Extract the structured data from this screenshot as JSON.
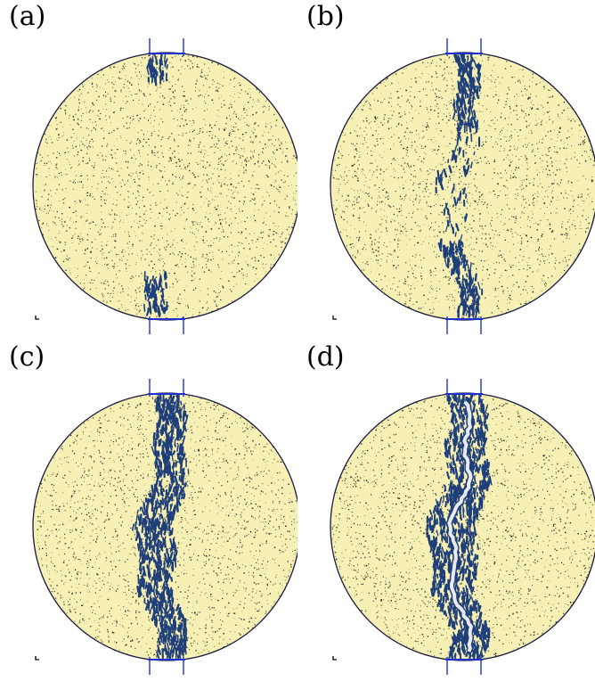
{
  "figure": {
    "panels": [
      {
        "id": "a",
        "label": "(a)",
        "crack_stage": 0.25
      },
      {
        "id": "b",
        "label": "(b)",
        "crack_stage": 0.5
      },
      {
        "id": "c",
        "label": "(c)",
        "crack_stage": 0.75
      },
      {
        "id": "d",
        "label": "(d)",
        "crack_stage": 1.0
      }
    ],
    "colors": {
      "specimen_fill": "#f7f0b4",
      "specimen_outline": "#1a1a40",
      "particle_dots": "#1b1b1b",
      "damage_marks": "#1f3f7a",
      "loading_plates": "#1f2fd0",
      "open_crack": "#e9e9f2"
    }
  }
}
